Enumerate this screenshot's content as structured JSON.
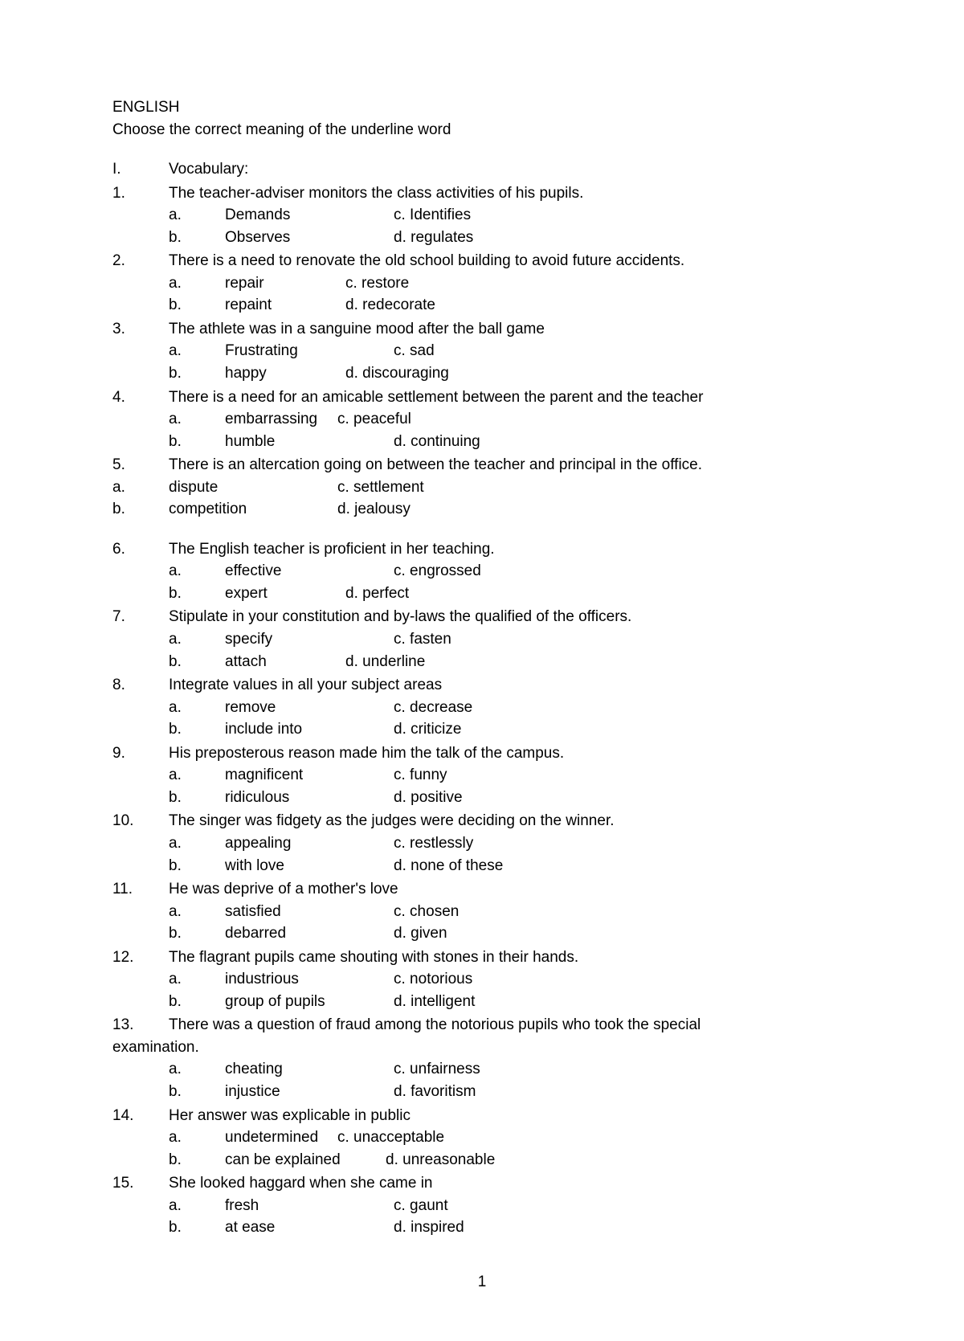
{
  "header": {
    "title": "ENGLISH",
    "instruction": "Choose the correct meaning of the underline word"
  },
  "section": {
    "roman": "I.",
    "label": "Vocabulary:"
  },
  "questions": [
    {
      "num": "1.",
      "text": "The teacher-adviser monitors the class activities of his pupils.",
      "options": [
        {
          "letter": "a.",
          "text": "Demands",
          "alt": "c. Identifies"
        },
        {
          "letter": "b.",
          "text": "Observes",
          "alt": "d. regulates"
        }
      ],
      "optWidth": "normal"
    },
    {
      "num": "2.",
      "text": "There is a need to renovate the old school building to avoid future accidents.",
      "options": [
        {
          "letter": "a.",
          "text": "repair",
          "alt": "c. restore"
        },
        {
          "letter": "b.",
          "text": "repaint",
          "alt": "d. redecorate"
        }
      ],
      "optWidth": "narrow"
    },
    {
      "num": "3.",
      "text": "The athlete was in a sanguine mood after the ball game",
      "options": [
        {
          "letter": "a.",
          "text": "Frustrating",
          "alt": "c. sad"
        },
        {
          "letter": "b.",
          "text": "happy",
          "alt": "d. discouraging"
        }
      ],
      "optWidth": "varied1"
    },
    {
      "num": "4.",
      "text": "There is a need for an amicable settlement between the parent and the teacher",
      "options": [
        {
          "letter": "a.",
          "text": "embarrassing",
          "alt": "c. peaceful"
        },
        {
          "letter": "b.",
          "text": "humble",
          "alt": "d. continuing"
        }
      ],
      "optWidth": "varied2"
    },
    {
      "num": "5.",
      "text": "There is an altercation going on between the teacher and principal in the office.",
      "options": [
        {
          "letter": "a.",
          "text": "dispute",
          "alt": "c. settlement"
        },
        {
          "letter": "b.",
          "text": "competition",
          "alt": "d. jealousy"
        }
      ],
      "flush": true,
      "optWidth": "normal"
    },
    {
      "num": "6.",
      "text": "The English teacher is proficient in her teaching.",
      "options": [
        {
          "letter": "a.",
          "text": "effective",
          "alt": "c. engrossed"
        },
        {
          "letter": "b.",
          "text": "expert",
          "alt": "d. perfect"
        }
      ],
      "optWidth": "varied3"
    },
    {
      "num": "7.",
      "text": "Stipulate in your constitution and by-laws the qualified of the officers.",
      "options": [
        {
          "letter": "a.",
          "text": "specify",
          "alt": "c. fasten"
        },
        {
          "letter": "b.",
          "text": "attach",
          "alt": "d. underline"
        }
      ],
      "optWidth": "varied4"
    },
    {
      "num": "8.",
      "text": "Integrate values in all your subject areas",
      "options": [
        {
          "letter": "a.",
          "text": "remove",
          "alt": "c. decrease"
        },
        {
          "letter": "b.",
          "text": "include into",
          "alt": "d. criticize"
        }
      ],
      "optWidth": "normal"
    },
    {
      "num": "9.",
      "text": "His preposterous reason made him the talk of the campus.",
      "options": [
        {
          "letter": "a.",
          "text": "magnificent",
          "alt": "c. funny"
        },
        {
          "letter": "b.",
          "text": "ridiculous",
          "alt": "d. positive"
        }
      ],
      "optWidth": "normal"
    },
    {
      "num": "10.",
      "text": " The singer was fidgety as the judges   were deciding on the winner.",
      "options": [
        {
          "letter": "a.",
          "text": "appealing",
          "alt": "c. restlessly"
        },
        {
          "letter": "b.",
          "text": "with love",
          "alt": "d. none of these"
        }
      ],
      "optWidth": "normal"
    },
    {
      "num": "11.",
      "text": "He was deprive of a mother's love",
      "options": [
        {
          "letter": "a.",
          "text": "satisfied",
          "alt": "c. chosen"
        },
        {
          "letter": "b.",
          "text": "debarred",
          "alt": "d. given"
        }
      ],
      "optWidth": "normal"
    },
    {
      "num": "12.",
      "text": " The flagrant pupils came shouting with stones in their hands.",
      "options": [
        {
          "letter": "a.",
          "text": "industrious",
          "alt": "c. notorious"
        },
        {
          "letter": "b.",
          "text": "group of pupils",
          "alt": "d. intelligent"
        }
      ],
      "optWidth": "normal"
    },
    {
      "num": "13.",
      "text": " There was a question of fraud among the notorious pupils who took the special",
      "text2": "examination.",
      "options": [
        {
          "letter": "a.",
          "text": "cheating",
          "alt": "c. unfairness"
        },
        {
          "letter": "b.",
          "text": "injustice",
          "alt": "d. favoritism"
        }
      ],
      "optWidth": "normal"
    },
    {
      "num": "14.",
      "text": " Her answer was explicable in public",
      "options": [
        {
          "letter": "a.",
          "text": "undetermined",
          "alt": "c. unacceptable"
        },
        {
          "letter": "b.",
          "text": "can be explained",
          "alt": "d. unreasonable"
        }
      ],
      "optWidth": "varied5"
    },
    {
      "num": "15.",
      "text": " She looked haggard when she came in",
      "options": [
        {
          "letter": "a.",
          "text": "fresh",
          "alt": "c. gaunt"
        },
        {
          "letter": "b.",
          "text": "at ease",
          "alt": "d. inspired"
        }
      ],
      "optWidth": "normal"
    }
  ],
  "pageNumber": "1"
}
